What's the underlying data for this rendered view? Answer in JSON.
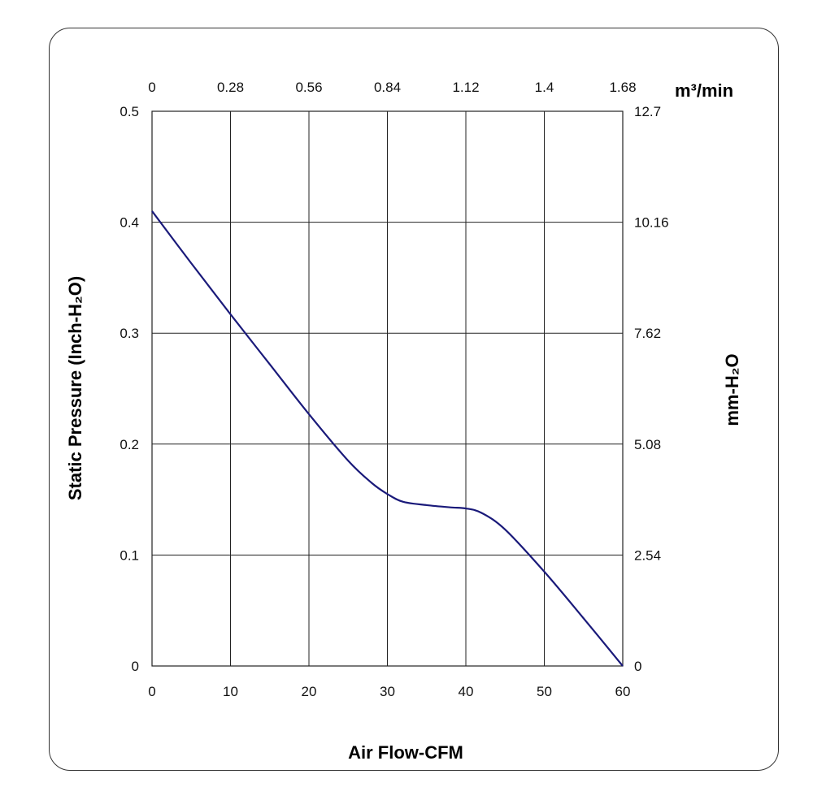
{
  "chart_data": {
    "type": "line",
    "xlabel": "Air Flow-CFM",
    "ylabel_left": "Static Pressure (Inch-H₂O)",
    "ylabel_right": "mm-H₂O",
    "xlabel_top": "m³/min",
    "grid": true,
    "xlim": [
      0,
      60
    ],
    "ylim": [
      0,
      0.5
    ],
    "x_ticks": [
      "0",
      "10",
      "20",
      "30",
      "40",
      "50",
      "60"
    ],
    "x_top_ticks": [
      "0",
      "0.28",
      "0.56",
      "0.84",
      "1.12",
      "1.4",
      "1.68"
    ],
    "y_ticks": [
      "0",
      "0.1",
      "0.2",
      "0.3",
      "0.4",
      "0.5"
    ],
    "y_right_ticks": [
      "0",
      "2.54",
      "5.08",
      "7.62",
      "10.16",
      "12.7"
    ],
    "line_color": "#1a1a7a",
    "series": [
      {
        "x": [
          0,
          5,
          10,
          15,
          20,
          25,
          28,
          30,
          32,
          35,
          38,
          40,
          42,
          45,
          50,
          55,
          60
        ],
        "values": [
          0.41,
          0.363,
          0.317,
          0.272,
          0.227,
          0.185,
          0.165,
          0.155,
          0.148,
          0.145,
          0.143,
          0.142,
          0.138,
          0.123,
          0.085,
          0.043,
          0.0
        ]
      }
    ]
  }
}
